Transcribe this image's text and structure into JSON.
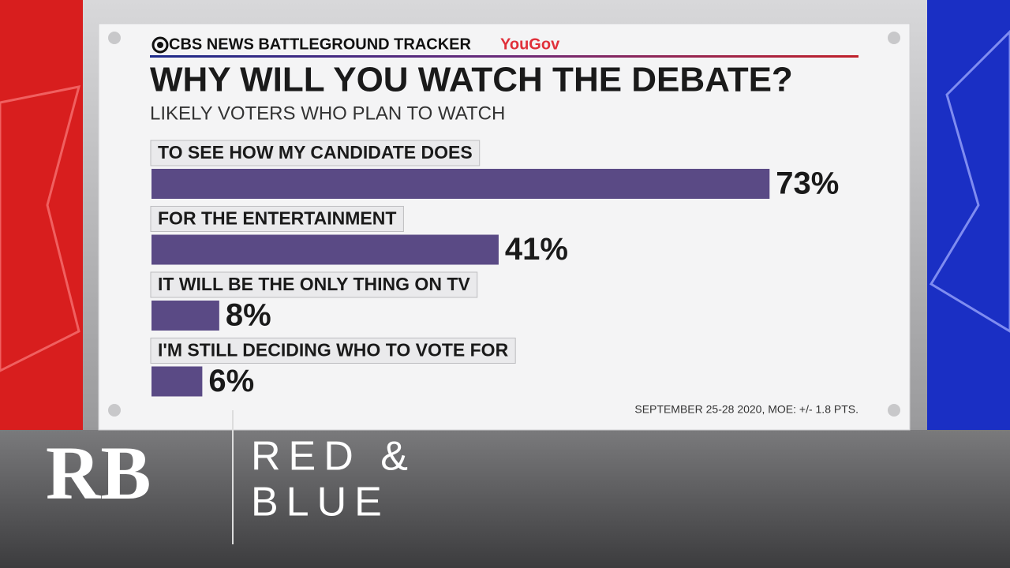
{
  "header": {
    "source": "CBS NEWS BATTLEGROUND TRACKER",
    "partner": "YouGov"
  },
  "chart_data": {
    "type": "bar",
    "orientation": "horizontal",
    "title": "WHY WILL YOU WATCH THE DEBATE?",
    "subtitle": "LIKELY VOTERS WHO PLAN TO WATCH",
    "categories": [
      "TO SEE HOW MY CANDIDATE DOES",
      "FOR THE ENTERTAINMENT",
      "IT WILL BE THE ONLY THING ON TV",
      "I'M STILL DECIDING WHO TO VOTE FOR"
    ],
    "values": [
      73,
      41,
      8,
      6
    ],
    "value_labels": [
      "73%",
      "41%",
      "8%",
      "6%"
    ],
    "color": "#5a4a85",
    "footnote": "SEPTEMBER 25-28 2020, MOE: +/- 1.8 PTS."
  },
  "branding": {
    "logo": "RB",
    "line1": "RED &",
    "line2": "BLUE"
  }
}
